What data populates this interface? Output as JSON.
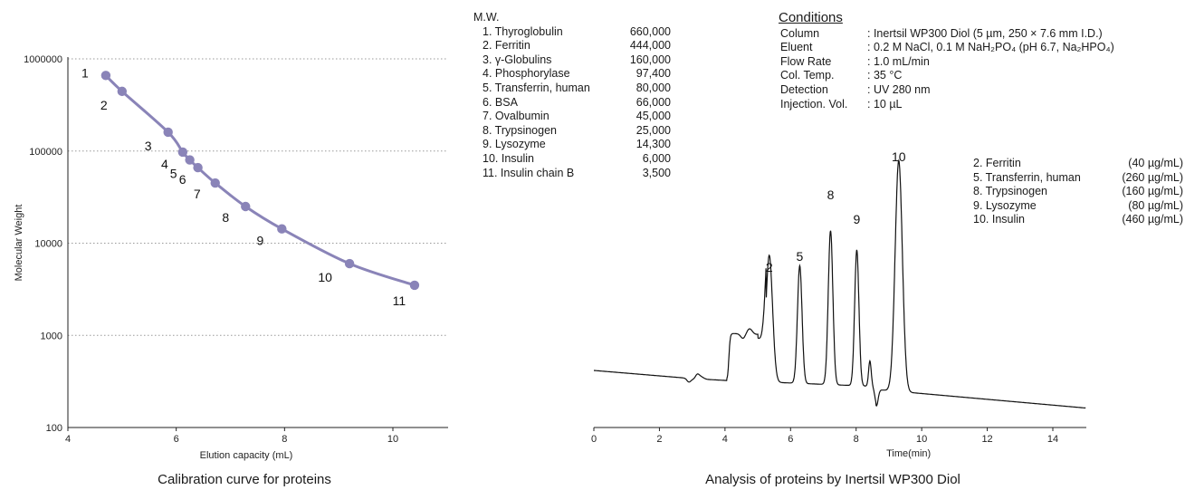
{
  "mw_list": {
    "header": "M.W.",
    "items": [
      {
        "name": "1. Thyroglobulin",
        "value": "660,000"
      },
      {
        "name": "2. Ferritin",
        "value": "444,000"
      },
      {
        "name": "3. γ-Globulins",
        "value": "160,000"
      },
      {
        "name": "4. Phosphorylase",
        "value": "97,400"
      },
      {
        "name": "5. Transferrin, human",
        "value": "80,000"
      },
      {
        "name": "6. BSA",
        "value": "66,000"
      },
      {
        "name": "7. Ovalbumin",
        "value": "45,000"
      },
      {
        "name": "8. Trypsinogen",
        "value": "25,000"
      },
      {
        "name": "9. Lysozyme",
        "value": "14,300"
      },
      {
        "name": "10. Insulin",
        "value": "6,000"
      },
      {
        "name": "11. Insulin chain B",
        "value": "3,500"
      }
    ]
  },
  "conditions": {
    "title": "Conditions",
    "rows": [
      {
        "key": "Column",
        "value": ": Inertsil WP300 Diol (5 µm, 250 × 7.6 mm I.D.)"
      },
      {
        "key": "Eluent",
        "value": ": 0.2 M NaCl, 0.1 M NaH₂PO₄ (pH 6.7, Na₂HPO₄)"
      },
      {
        "key": "Flow Rate",
        "value": ": 1.0 mL/min"
      },
      {
        "key": "Col. Temp.",
        "value": ": 35 °C"
      },
      {
        "key": "Detection",
        "value": ": UV 280 nm"
      },
      {
        "key": "Injection. Vol.",
        "value": ": 10 µL"
      }
    ]
  },
  "sample_list": [
    {
      "name": "2. Ferritin",
      "value": "(40 µg/mL)"
    },
    {
      "name": "5. Transferrin, human",
      "value": "(260 µg/mL)"
    },
    {
      "name": "8. Trypsinogen",
      "value": "(160 µg/mL)"
    },
    {
      "name": "9. Lysozyme",
      "value": "(80 µg/mL)"
    },
    {
      "name": "10. Insulin",
      "value": "(460 µg/mL)"
    }
  ],
  "chart_data": [
    {
      "type": "line",
      "title": "Calibration curve for proteins",
      "xlabel": "Elution capacity (mL)",
      "ylabel": "Molecular Weight",
      "xlim": [
        4,
        11
      ],
      "ylim": [
        100,
        1000000
      ],
      "yscale": "log",
      "xticks": [
        4,
        6,
        8,
        10
      ],
      "yticks": [
        100,
        1000,
        10000,
        100000,
        1000000
      ],
      "ytick_labels": [
        "100",
        "1000",
        "10000",
        "100000",
        "1000000"
      ],
      "grid": "horizontal dotted",
      "color": "#8a84b8",
      "points": [
        {
          "label": "1",
          "x": 4.7,
          "y": 660000
        },
        {
          "label": "2",
          "x": 5.0,
          "y": 444000
        },
        {
          "label": "3",
          "x": 5.85,
          "y": 160000
        },
        {
          "label": "4",
          "x": 6.12,
          "y": 97400
        },
        {
          "label": "5",
          "x": 6.25,
          "y": 80000
        },
        {
          "label": "6",
          "x": 6.4,
          "y": 66000
        },
        {
          "label": "7",
          "x": 6.72,
          "y": 45000
        },
        {
          "label": "8",
          "x": 7.28,
          "y": 25000
        },
        {
          "label": "9",
          "x": 7.95,
          "y": 14300
        },
        {
          "label": "10",
          "x": 9.2,
          "y": 6000
        },
        {
          "label": "11",
          "x": 10.4,
          "y": 3500
        }
      ]
    },
    {
      "type": "line",
      "title": "Analysis of proteins by Inertsil WP300 Diol",
      "xlabel": "Time(min)",
      "ylabel": "",
      "xlim": [
        0,
        15
      ],
      "xticks": [
        0,
        2,
        4,
        6,
        8,
        10,
        12,
        14
      ],
      "color": "#111111",
      "peaks": [
        {
          "label": "2",
          "x": 5.35
        },
        {
          "label": "5",
          "x": 6.28
        },
        {
          "label": "8",
          "x": 7.22
        },
        {
          "label": "9",
          "x": 8.02
        },
        {
          "label": "10",
          "x": 9.3
        }
      ]
    }
  ]
}
